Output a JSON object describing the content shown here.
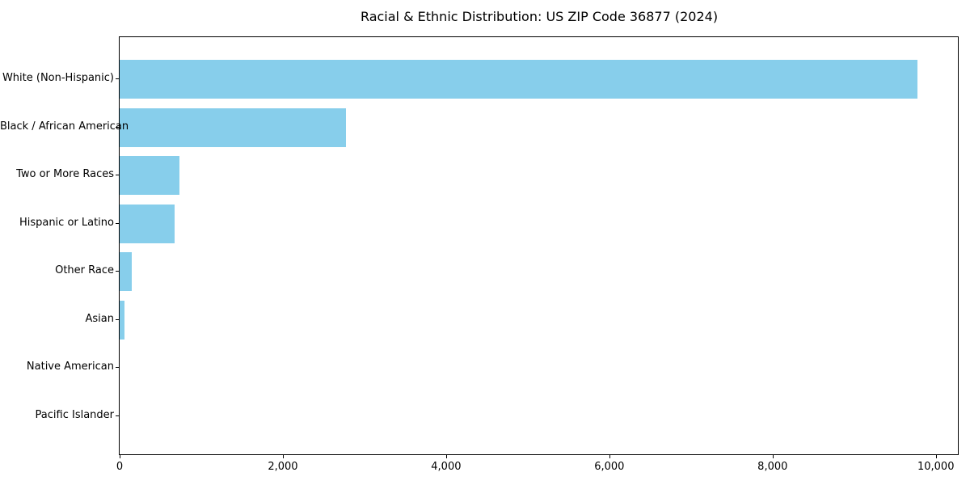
{
  "title": "Racial & Ethnic Distribution: US ZIP Code 36877 (2024)",
  "colors": {
    "bar": "#87CEEB",
    "axis": "#000000",
    "text": "#000000",
    "background": "#ffffff"
  },
  "chart_data": {
    "type": "bar",
    "orientation": "horizontal",
    "title": "Racial & Ethnic Distribution: US ZIP Code 36877 (2024)",
    "xlabel": "",
    "ylabel": "",
    "categories": [
      "White (Non-Hispanic)",
      "Black / African American",
      "Two or More Races",
      "Hispanic or Latino",
      "Other Race",
      "Asian",
      "Native American",
      "Pacific Islander"
    ],
    "values": [
      9770,
      2770,
      735,
      675,
      150,
      60,
      0,
      0
    ],
    "bar_color": "#87CEEB",
    "xlim": [
      0,
      10270
    ],
    "x_ticks": [
      0,
      2000,
      4000,
      6000,
      8000,
      10000
    ],
    "x_tick_labels": [
      "0",
      "2,000",
      "4,000",
      "6,000",
      "8,000",
      "10,000"
    ],
    "grid": false,
    "legend": false
  }
}
